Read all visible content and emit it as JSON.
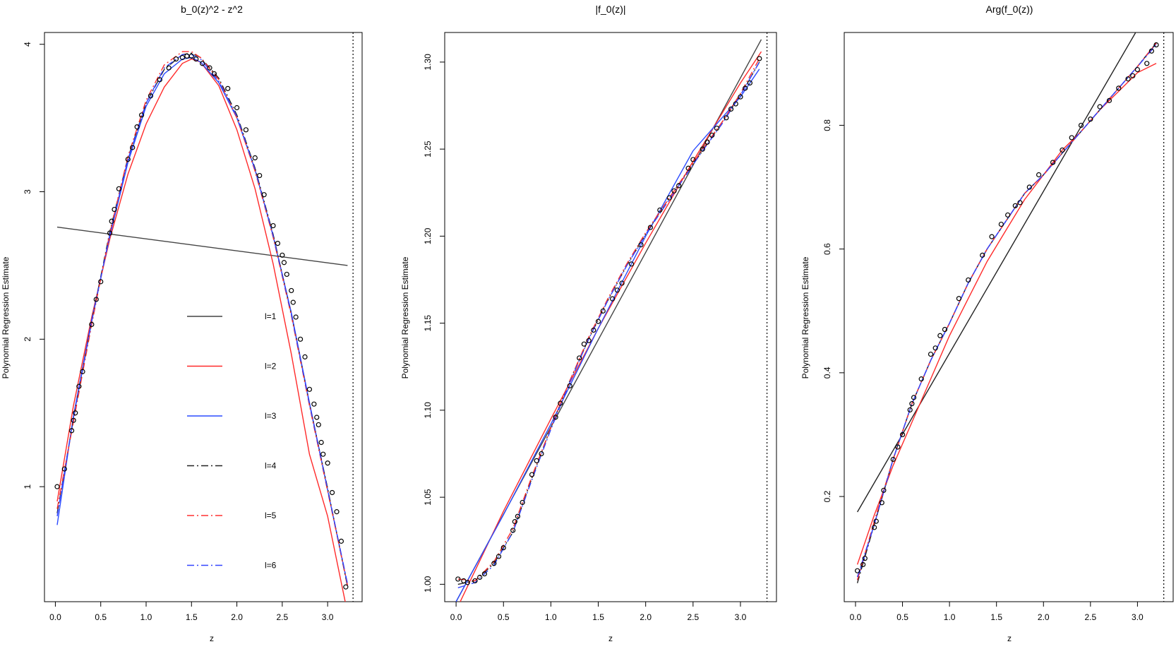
{
  "figure": {
    "background": "#ffffff"
  },
  "chart_data": [
    {
      "type": "line",
      "title": "b_0(z)^2 - z^2",
      "xlabel": "z",
      "ylabel": "Polynomial Regression Estimate",
      "xlim": [
        -0.12,
        3.38
      ],
      "ylim": [
        0.22,
        4.08
      ],
      "xticks": [
        0.0,
        0.5,
        1.0,
        1.5,
        2.0,
        2.5,
        3.0
      ],
      "xtick_labels": [
        "0.0",
        "0.5",
        "1.0",
        "1.5",
        "2.0",
        "2.5",
        "3.0"
      ],
      "yticks": [
        1,
        2,
        3,
        4
      ],
      "ytick_labels": [
        "1",
        "2",
        "3",
        "4"
      ],
      "vline": 3.28,
      "legend": {
        "placement": "center",
        "entries": [
          {
            "label": "l=1",
            "color": "#444444",
            "dash": "solid"
          },
          {
            "label": "l=2",
            "color": "#ff2a2a",
            "dash": "solid"
          },
          {
            "label": "l=3",
            "color": "#2b4bff",
            "dash": "solid"
          },
          {
            "label": "l=4",
            "color": "#222222",
            "dash": "dashdot"
          },
          {
            "label": "l=5",
            "color": "#ff3030",
            "dash": "dashdot"
          },
          {
            "label": "l=6",
            "color": "#3344ff",
            "dash": "dashdot"
          }
        ]
      },
      "points": {
        "x": [
          0.02,
          0.1,
          0.18,
          0.2,
          0.22,
          0.26,
          0.3,
          0.4,
          0.45,
          0.5,
          0.6,
          0.62,
          0.65,
          0.7,
          0.8,
          0.85,
          0.9,
          0.95,
          1.05,
          1.15,
          1.25,
          1.33,
          1.4,
          1.45,
          1.5,
          1.55,
          1.62,
          1.7,
          1.75,
          1.9,
          2.0,
          2.1,
          2.2,
          2.25,
          2.3,
          2.4,
          2.45,
          2.5,
          2.52,
          2.55,
          2.6,
          2.62,
          2.65,
          2.7,
          2.75,
          2.8,
          2.85,
          2.88,
          2.9,
          2.93,
          2.95,
          3.0,
          3.05,
          3.1,
          3.15,
          3.2
        ],
        "y": [
          1.0,
          1.12,
          1.38,
          1.45,
          1.5,
          1.68,
          1.78,
          2.1,
          2.27,
          2.39,
          2.72,
          2.8,
          2.88,
          3.02,
          3.22,
          3.3,
          3.44,
          3.52,
          3.65,
          3.76,
          3.84,
          3.9,
          3.91,
          3.92,
          3.92,
          3.9,
          3.87,
          3.84,
          3.8,
          3.7,
          3.57,
          3.42,
          3.23,
          3.11,
          2.98,
          2.77,
          2.65,
          2.57,
          2.52,
          2.44,
          2.33,
          2.25,
          2.15,
          2.0,
          1.88,
          1.66,
          1.56,
          1.47,
          1.42,
          1.3,
          1.22,
          1.16,
          0.96,
          0.83,
          0.63,
          0.32
        ]
      },
      "series": [
        {
          "x": [
            0.02,
            3.22
          ],
          "y": [
            2.76,
            2.5
          ],
          "color": "#444444",
          "dash": "solid"
        },
        {
          "x": [
            0.02,
            0.2,
            0.4,
            0.6,
            0.8,
            1.0,
            1.2,
            1.4,
            1.5,
            1.6,
            1.8,
            2.0,
            2.2,
            2.4,
            2.6,
            2.8,
            3.0,
            3.2
          ],
          "y": [
            0.9,
            1.55,
            2.15,
            2.68,
            3.12,
            3.46,
            3.71,
            3.87,
            3.9,
            3.88,
            3.72,
            3.42,
            3.02,
            2.51,
            1.9,
            1.22,
            0.8,
            0.2
          ],
          "color": "#ff2a2a",
          "dash": "solid"
        },
        {
          "x": [
            0.02,
            0.2,
            0.4,
            0.6,
            0.8,
            1.0,
            1.2,
            1.4,
            1.5,
            1.6,
            1.8,
            2.0,
            2.2,
            2.4,
            2.6,
            2.8,
            3.0,
            3.22
          ],
          "y": [
            0.74,
            1.48,
            2.13,
            2.7,
            3.2,
            3.58,
            3.8,
            3.9,
            3.91,
            3.88,
            3.74,
            3.5,
            3.15,
            2.7,
            2.18,
            1.57,
            0.98,
            0.33
          ],
          "color": "#2b4bff",
          "dash": "solid"
        },
        {
          "x": [
            0.02,
            0.2,
            0.4,
            0.6,
            0.8,
            1.0,
            1.2,
            1.4,
            1.5,
            1.6,
            1.8,
            2.0,
            2.2,
            2.4,
            2.6,
            2.8,
            3.0,
            3.22
          ],
          "y": [
            0.82,
            1.46,
            2.12,
            2.73,
            3.23,
            3.6,
            3.83,
            3.93,
            3.94,
            3.91,
            3.77,
            3.52,
            3.16,
            2.71,
            2.17,
            1.56,
            0.99,
            0.32
          ],
          "color": "#222222",
          "dash": "dashdot"
        },
        {
          "x": [
            0.02,
            0.2,
            0.4,
            0.6,
            0.8,
            1.0,
            1.2,
            1.4,
            1.5,
            1.6,
            1.8,
            2.0,
            2.2,
            2.4,
            2.6,
            2.8,
            3.0,
            3.22
          ],
          "y": [
            0.85,
            1.44,
            2.1,
            2.72,
            3.24,
            3.62,
            3.86,
            3.95,
            3.95,
            3.91,
            3.76,
            3.5,
            3.14,
            2.69,
            2.16,
            1.55,
            0.97,
            0.33
          ],
          "color": "#ff3030",
          "dash": "dashdot"
        },
        {
          "x": [
            0.02,
            0.2,
            0.4,
            0.6,
            0.8,
            1.0,
            1.2,
            1.4,
            1.5,
            1.6,
            1.8,
            2.0,
            2.2,
            2.4,
            2.6,
            2.8,
            3.0,
            3.22
          ],
          "y": [
            0.8,
            1.47,
            2.12,
            2.71,
            3.22,
            3.6,
            3.84,
            3.93,
            3.93,
            3.9,
            3.75,
            3.51,
            3.15,
            2.7,
            2.17,
            1.56,
            0.98,
            0.34
          ],
          "color": "#3344ff",
          "dash": "dashdot"
        }
      ]
    },
    {
      "type": "line",
      "title": "|f_0(z)|",
      "xlabel": "z",
      "ylabel": "Polynomial Regression Estimate",
      "xlim": [
        -0.12,
        3.38
      ],
      "ylim": [
        0.99,
        1.317
      ],
      "xticks": [
        0.0,
        0.5,
        1.0,
        1.5,
        2.0,
        2.5,
        3.0
      ],
      "xtick_labels": [
        "0.0",
        "0.5",
        "1.0",
        "1.5",
        "2.0",
        "2.5",
        "3.0"
      ],
      "yticks": [
        1.0,
        1.05,
        1.1,
        1.15,
        1.2,
        1.25,
        1.3
      ],
      "ytick_labels": [
        "1.00",
        "1.05",
        "1.10",
        "1.15",
        "1.20",
        "1.25",
        "1.30"
      ],
      "vline": 3.28,
      "points": {
        "x": [
          0.02,
          0.08,
          0.12,
          0.2,
          0.25,
          0.3,
          0.4,
          0.45,
          0.5,
          0.6,
          0.62,
          0.65,
          0.7,
          0.8,
          0.85,
          0.9,
          1.05,
          1.1,
          1.2,
          1.3,
          1.35,
          1.4,
          1.45,
          1.5,
          1.55,
          1.65,
          1.7,
          1.75,
          1.85,
          1.95,
          2.05,
          2.15,
          2.25,
          2.3,
          2.35,
          2.45,
          2.5,
          2.6,
          2.65,
          2.7,
          2.75,
          2.85,
          2.9,
          2.95,
          3.0,
          3.05,
          3.1,
          3.2
        ],
        "y": [
          1.003,
          1.002,
          1.001,
          1.002,
          1.004,
          1.006,
          1.012,
          1.016,
          1.021,
          1.031,
          1.036,
          1.039,
          1.047,
          1.063,
          1.071,
          1.075,
          1.096,
          1.104,
          1.114,
          1.13,
          1.138,
          1.14,
          1.146,
          1.151,
          1.157,
          1.164,
          1.169,
          1.173,
          1.184,
          1.195,
          1.205,
          1.215,
          1.222,
          1.226,
          1.229,
          1.239,
          1.244,
          1.25,
          1.254,
          1.258,
          1.262,
          1.268,
          1.273,
          1.276,
          1.28,
          1.285,
          1.288,
          1.302
        ]
      },
      "series": [
        {
          "x": [
            0.0,
            3.22
          ],
          "y": [
            0.99,
            1.313
          ],
          "color": "#444444",
          "dash": "solid"
        },
        {
          "x": [
            0.0,
            0.5,
            1.0,
            1.5,
            2.0,
            2.5,
            3.0,
            3.22
          ],
          "y": [
            0.985,
            1.042,
            1.095,
            1.147,
            1.196,
            1.243,
            1.288,
            1.306
          ],
          "color": "#ff2a2a",
          "dash": "solid"
        },
        {
          "x": [
            0.0,
            0.5,
            1.0,
            1.5,
            2.0,
            2.5,
            3.0,
            3.2
          ],
          "y": [
            0.99,
            1.04,
            1.092,
            1.147,
            1.2,
            1.249,
            1.28,
            1.296
          ],
          "color": "#2b4bff",
          "dash": "solid"
        },
        {
          "x": [
            0.02,
            0.2,
            0.4,
            0.6,
            0.8,
            1.0,
            1.2,
            1.4,
            1.6,
            1.8,
            2.0,
            2.2,
            2.4,
            2.6,
            2.8,
            3.0,
            3.2
          ],
          "y": [
            1.0,
            1.002,
            1.012,
            1.03,
            1.061,
            1.09,
            1.117,
            1.141,
            1.163,
            1.183,
            1.201,
            1.218,
            1.234,
            1.249,
            1.265,
            1.281,
            1.3
          ],
          "color": "#222222",
          "dash": "dashdot"
        },
        {
          "x": [
            0.02,
            0.2,
            0.4,
            0.6,
            0.8,
            1.0,
            1.2,
            1.4,
            1.6,
            1.8,
            2.0,
            2.2,
            2.4,
            2.6,
            2.8,
            3.0,
            3.2
          ],
          "y": [
            1.003,
            1.002,
            1.013,
            1.032,
            1.062,
            1.09,
            1.117,
            1.142,
            1.164,
            1.184,
            1.202,
            1.218,
            1.234,
            1.25,
            1.265,
            1.282,
            1.302
          ],
          "color": "#ff3030",
          "dash": "dashdot"
        },
        {
          "x": [
            0.02,
            0.2,
            0.4,
            0.6,
            0.8,
            1.0,
            1.2,
            1.4,
            1.6,
            1.8,
            2.0,
            2.2,
            2.4,
            2.6,
            2.8,
            3.0,
            3.2
          ],
          "y": [
            0.998,
            1.001,
            1.011,
            1.03,
            1.06,
            1.089,
            1.116,
            1.141,
            1.163,
            1.183,
            1.201,
            1.217,
            1.233,
            1.249,
            1.264,
            1.281,
            1.3
          ],
          "color": "#3344ff",
          "dash": "dashdot"
        }
      ]
    },
    {
      "type": "line",
      "title": "Arg(f_0(z))",
      "xlabel": "z",
      "ylabel": "Polynomial Regression Estimate",
      "xlim": [
        -0.12,
        3.38
      ],
      "ylim": [
        0.03,
        0.95
      ],
      "xticks": [
        0.0,
        0.5,
        1.0,
        1.5,
        2.0,
        2.5,
        3.0
      ],
      "xtick_labels": [
        "0.0",
        "0.5",
        "1.0",
        "1.5",
        "2.0",
        "2.5",
        "3.0"
      ],
      "yticks": [
        0.2,
        0.4,
        0.6,
        0.8
      ],
      "ytick_labels": [
        "0.2",
        "0.4",
        "0.6",
        "0.8"
      ],
      "vline": 3.28,
      "points": {
        "x": [
          0.02,
          0.08,
          0.1,
          0.2,
          0.22,
          0.28,
          0.3,
          0.4,
          0.45,
          0.5,
          0.58,
          0.6,
          0.62,
          0.7,
          0.8,
          0.85,
          0.9,
          0.95,
          1.1,
          1.2,
          1.35,
          1.45,
          1.55,
          1.62,
          1.7,
          1.75,
          1.85,
          1.95,
          2.1,
          2.2,
          2.3,
          2.4,
          2.5,
          2.6,
          2.7,
          2.8,
          2.9,
          2.95,
          3.0,
          3.1,
          3.15,
          3.2
        ],
        "y": [
          0.08,
          0.09,
          0.1,
          0.15,
          0.16,
          0.19,
          0.21,
          0.26,
          0.28,
          0.3,
          0.34,
          0.35,
          0.36,
          0.39,
          0.43,
          0.44,
          0.46,
          0.47,
          0.52,
          0.55,
          0.59,
          0.62,
          0.64,
          0.655,
          0.67,
          0.675,
          0.7,
          0.72,
          0.74,
          0.76,
          0.78,
          0.8,
          0.81,
          0.83,
          0.84,
          0.86,
          0.875,
          0.88,
          0.89,
          0.9,
          0.92,
          0.93
        ]
      },
      "series": [
        {
          "x": [
            0.02,
            3.0
          ],
          "y": [
            0.175,
            0.955
          ],
          "color": "#222222",
          "dash": "solid"
        },
        {
          "x": [
            0.02,
            0.2,
            0.4,
            0.6,
            0.8,
            1.0,
            1.2,
            1.4,
            1.6,
            1.8,
            2.0,
            2.2,
            2.4,
            2.6,
            2.8,
            3.0,
            3.2
          ],
          "y": [
            0.09,
            0.17,
            0.25,
            0.32,
            0.39,
            0.46,
            0.52,
            0.58,
            0.63,
            0.68,
            0.72,
            0.76,
            0.79,
            0.825,
            0.855,
            0.885,
            0.9
          ],
          "color": "#ff2a2a",
          "dash": "solid"
        },
        {
          "x": [
            0.02,
            0.2,
            0.4,
            0.6,
            0.8,
            1.0,
            1.2,
            1.4,
            1.6,
            1.8,
            2.0,
            2.2,
            2.4,
            2.6,
            2.8,
            3.0,
            3.2
          ],
          "y": [
            0.065,
            0.155,
            0.26,
            0.35,
            0.42,
            0.48,
            0.545,
            0.6,
            0.645,
            0.69,
            0.72,
            0.755,
            0.79,
            0.825,
            0.86,
            0.895,
            0.932
          ],
          "color": "#2b4bff",
          "dash": "solid"
        },
        {
          "x": [
            0.02,
            0.2,
            0.4,
            0.6,
            0.8,
            1.0,
            1.2,
            1.4,
            1.6,
            1.8,
            2.0,
            2.2,
            2.4,
            2.6,
            2.8,
            3.0,
            3.2
          ],
          "y": [
            0.06,
            0.155,
            0.26,
            0.35,
            0.42,
            0.48,
            0.545,
            0.6,
            0.645,
            0.69,
            0.72,
            0.755,
            0.79,
            0.825,
            0.86,
            0.895,
            0.933
          ],
          "color": "#222222",
          "dash": "dashdot"
        },
        {
          "x": [
            0.02,
            0.2,
            0.4,
            0.6,
            0.8,
            1.0,
            1.2,
            1.4,
            1.6,
            1.8,
            2.0,
            2.2,
            2.4,
            2.6,
            2.8,
            3.0,
            3.2
          ],
          "y": [
            0.065,
            0.16,
            0.26,
            0.35,
            0.42,
            0.48,
            0.545,
            0.6,
            0.645,
            0.69,
            0.72,
            0.755,
            0.79,
            0.825,
            0.86,
            0.895,
            0.933
          ],
          "color": "#ff3030",
          "dash": "dashdot"
        },
        {
          "x": [
            0.02,
            0.2,
            0.4,
            0.6,
            0.8,
            1.0,
            1.2,
            1.4,
            1.6,
            1.8,
            2.0,
            2.2,
            2.4,
            2.6,
            2.8,
            3.0,
            3.2
          ],
          "y": [
            0.07,
            0.155,
            0.26,
            0.35,
            0.42,
            0.48,
            0.545,
            0.6,
            0.645,
            0.69,
            0.72,
            0.755,
            0.79,
            0.825,
            0.86,
            0.895,
            0.93
          ],
          "color": "#3344ff",
          "dash": "dashdot"
        }
      ]
    }
  ]
}
